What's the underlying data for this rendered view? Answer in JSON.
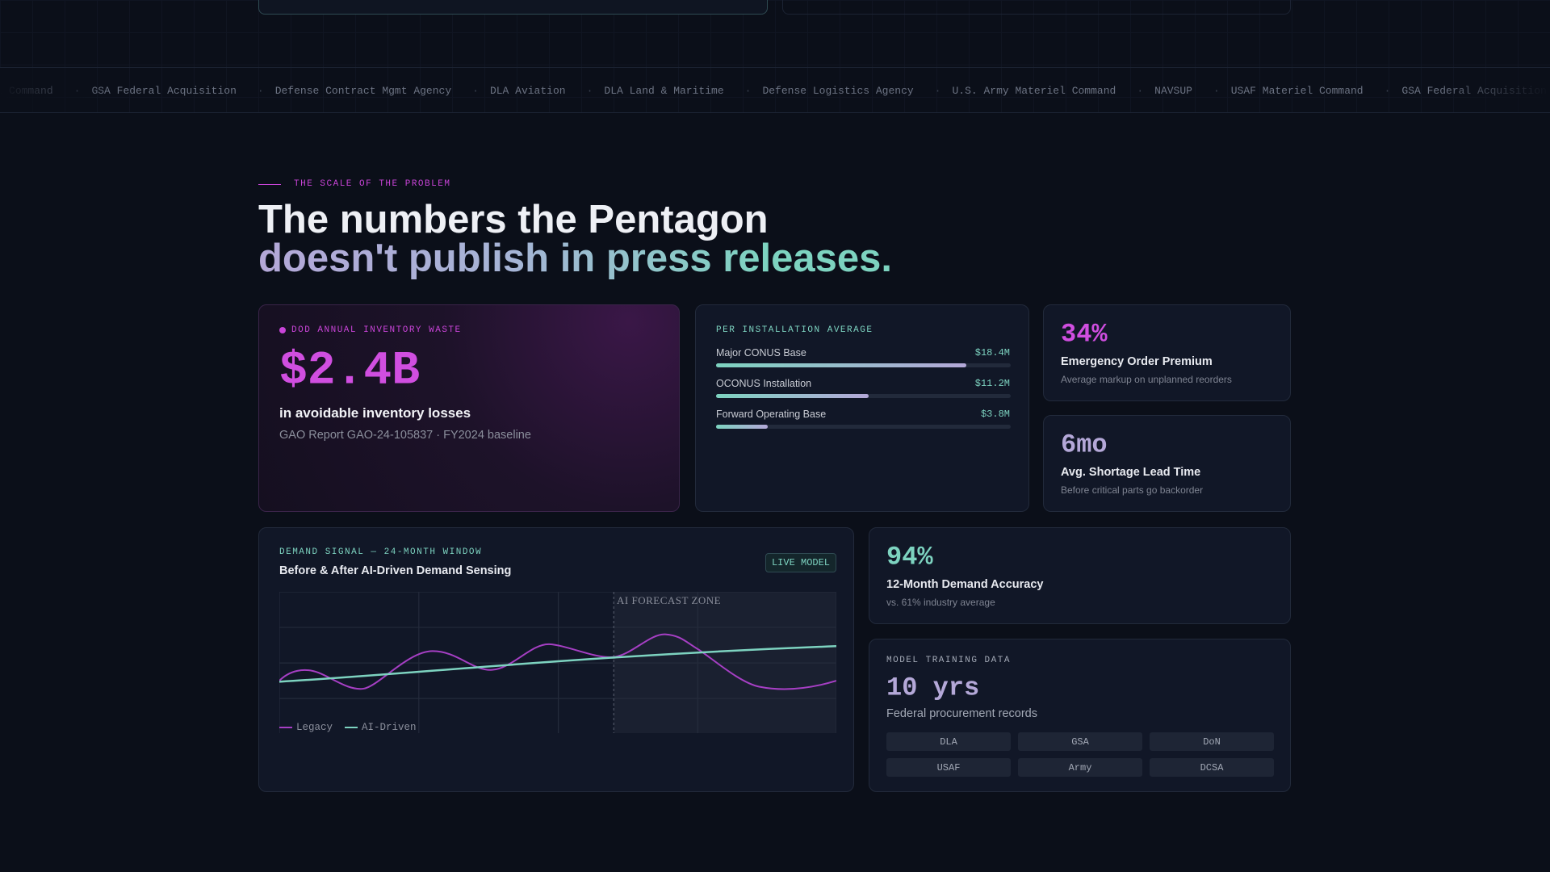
{
  "ticker": [
    "GSA Federal Acquisition",
    "Defense Contract Mgmt Agency",
    "DLA Aviation",
    "DLA Land & Maritime",
    "Defense Logistics Agency",
    "U.S. Army Materiel Command",
    "NAVSUP",
    "USAF Materiel Command"
  ],
  "section": {
    "eyebrow": "THE SCALE OF THE PROBLEM",
    "headline_1": "The numbers the Pentagon",
    "headline_2": "doesn't publish in press releases."
  },
  "waste_card": {
    "eyebrow": "DOD ANNUAL INVENTORY WASTE",
    "value": "$2.4B",
    "label": "in avoidable inventory losses",
    "source": "GAO Report GAO-24-105837 · FY2024 baseline"
  },
  "installation_card": {
    "eyebrow": "PER INSTALLATION AVERAGE",
    "rows": [
      {
        "name": "Major CONUS Base",
        "value": 18.4,
        "label": "$18.4M"
      },
      {
        "name": "OCONUS Installation",
        "value": 11.2,
        "label": "$11.2M"
      },
      {
        "name": "Forward Operating Base",
        "value": 3.8,
        "label": "$3.8M"
      }
    ]
  },
  "stats": [
    {
      "value": "34%",
      "title": "Emergency Order Premium",
      "note": "Average markup on unplanned reorders"
    },
    {
      "value": "6mo",
      "title": "Avg. Shortage Lead Time",
      "note": "Before critical parts go backorder"
    },
    {
      "value": "94%",
      "title": "12-Month Demand Accuracy",
      "note": "vs. 61% industry average"
    }
  ],
  "chart_card": {
    "eyebrow": "DEMAND SIGNAL — 24-MONTH WINDOW",
    "title": "Before & After AI-Driven Demand Sensing",
    "badge": "LIVE MODEL",
    "annotation": "AI FORECAST ZONE",
    "legend": [
      "Legacy",
      "AI-Driven"
    ]
  },
  "training_card": {
    "eyebrow": "MODEL TRAINING DATA",
    "value": "10 yrs",
    "label": "Federal procurement records",
    "tags": [
      "DLA",
      "GSA",
      "DoN",
      "USAF",
      "Army",
      "DCSA"
    ]
  }
}
